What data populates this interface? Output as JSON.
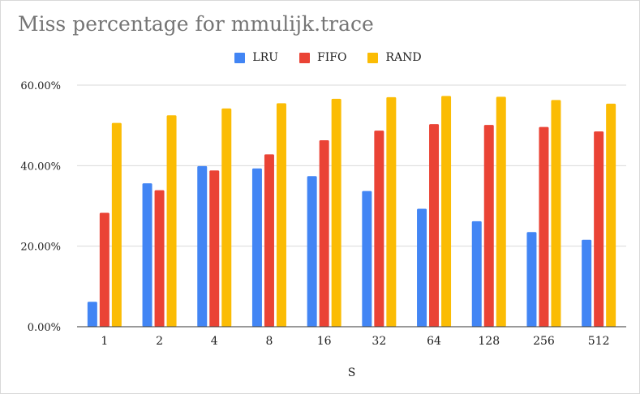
{
  "chart_data": {
    "type": "bar",
    "title": "Miss percentage for mmulijk.trace",
    "xlabel": "S",
    "ylabel": "",
    "categories": [
      "1",
      "2",
      "4",
      "8",
      "16",
      "32",
      "64",
      "128",
      "256",
      "512"
    ],
    "ylim": [
      0,
      60
    ],
    "yticks": [
      "0.00%",
      "20.00%",
      "40.00%",
      "60.00%"
    ],
    "ytick_values": [
      0,
      20,
      40,
      60
    ],
    "grid": true,
    "legend_position": "top",
    "series": [
      {
        "name": "LRU",
        "color": "#4285f4",
        "values": [
          6.2,
          35.6,
          39.9,
          39.3,
          37.4,
          33.7,
          29.3,
          26.2,
          23.5,
          21.6
        ]
      },
      {
        "name": "FIFO",
        "color": "#ea4335",
        "values": [
          28.3,
          33.9,
          38.8,
          42.8,
          46.3,
          48.7,
          50.3,
          50.1,
          49.6,
          48.5
        ]
      },
      {
        "name": "RAND",
        "color": "#fbbc04",
        "values": [
          50.6,
          52.5,
          54.2,
          55.5,
          56.6,
          57.0,
          57.3,
          57.1,
          56.3,
          55.4
        ]
      }
    ]
  }
}
